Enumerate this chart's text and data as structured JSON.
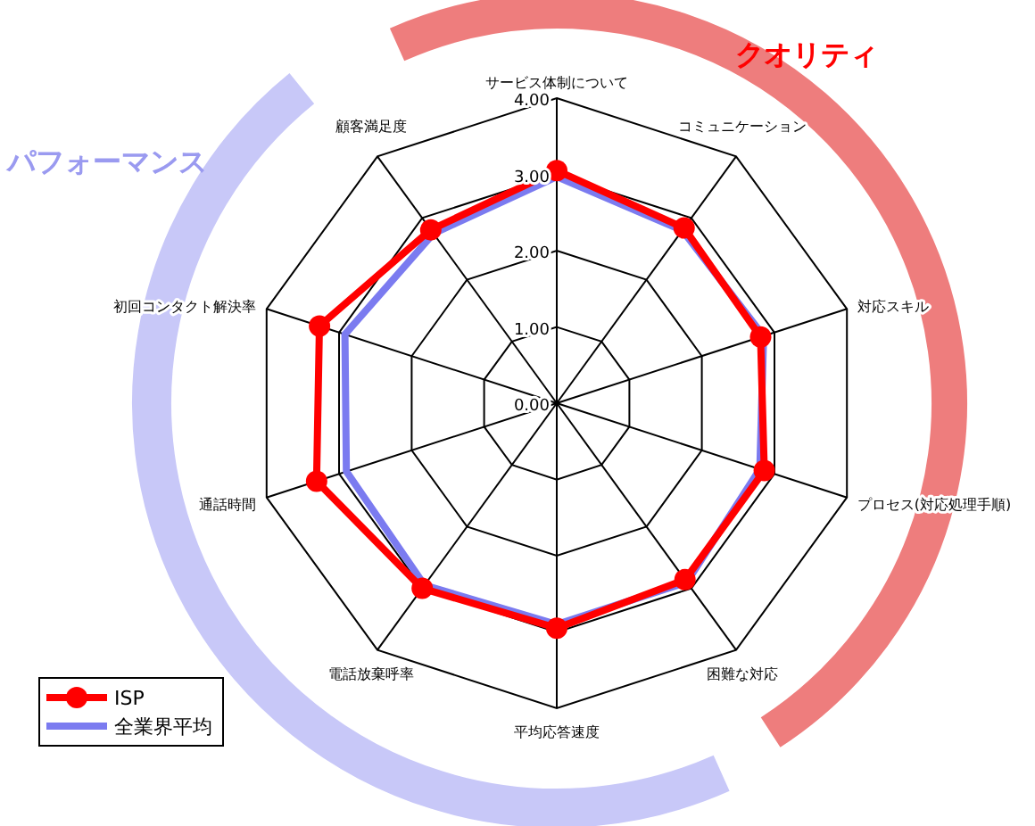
{
  "chart_data": {
    "type": "radar",
    "categories": [
      "サービス体制について",
      "コミュニケーション",
      "対応スキル",
      "プロセス(対応処理手順)",
      "困難な対応",
      "平均応答速度",
      "電話放棄呼率",
      "通話時間",
      "初回コンタクト解決率",
      "顧客満足度"
    ],
    "series": [
      {
        "name": "ISP",
        "color": "#ff0000",
        "marker": "circle",
        "values": [
          3.05,
          2.84,
          2.81,
          2.86,
          2.86,
          2.95,
          3.0,
          3.31,
          3.27,
          2.81
        ]
      },
      {
        "name": "全業界平均",
        "color": "#7b7bf0",
        "marker": "none",
        "values": [
          2.97,
          2.8,
          2.85,
          2.8,
          2.9,
          2.9,
          2.95,
          2.9,
          2.92,
          2.75
        ]
      }
    ],
    "ylim": [
      0,
      4
    ],
    "yticks": [
      {
        "value": 0,
        "label": "0.00"
      },
      {
        "value": 1,
        "label": "1.00"
      },
      {
        "value": 2,
        "label": "2.00"
      },
      {
        "value": 3,
        "label": "3.00"
      },
      {
        "value": 4,
        "label": "4.00"
      }
    ],
    "grid": true,
    "legend": "bottom left",
    "annotations": [
      "クオリティ",
      "パフォーマンス"
    ]
  }
}
